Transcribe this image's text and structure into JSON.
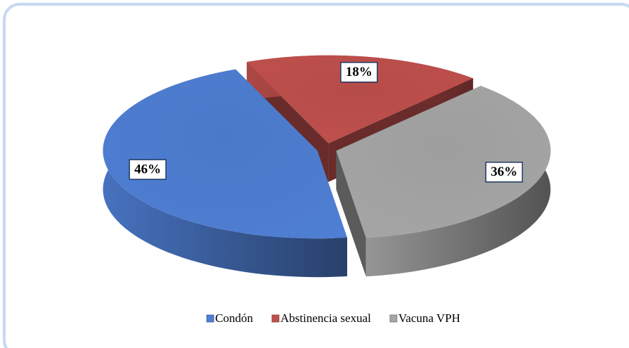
{
  "chart_data": {
    "type": "pie",
    "categories": [
      "Condón",
      "Abstinencia sexual",
      "Vacuna VPH"
    ],
    "values": [
      46,
      18,
      36
    ],
    "value_labels": [
      "46%",
      "18%",
      "36%"
    ],
    "colors": [
      "#4f7fd4",
      "#c0504d",
      "#a6a6a6"
    ],
    "legend": "bottom"
  }
}
